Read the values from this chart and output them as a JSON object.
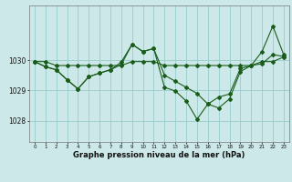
{
  "title": "Graphe pression niveau de la mer (hPa)",
  "background_color": "#cce8e8",
  "grid_color": "#99cccc",
  "line_color": "#1a5c1a",
  "x_labels": [
    "0",
    "1",
    "2",
    "3",
    "4",
    "5",
    "6",
    "7",
    "8",
    "9",
    "10",
    "11",
    "12",
    "13",
    "14",
    "15",
    "16",
    "17",
    "18",
    "19",
    "20",
    "21",
    "22",
    "23"
  ],
  "y_ticks": [
    1028,
    1029,
    1030
  ],
  "ylim": [
    1027.3,
    1031.8
  ],
  "xlim": [
    -0.5,
    23.5
  ],
  "line1": [
    1029.95,
    1029.95,
    1029.82,
    1029.82,
    1029.82,
    1029.82,
    1029.82,
    1029.82,
    1029.82,
    1029.95,
    1029.95,
    1029.95,
    1029.82,
    1029.82,
    1029.82,
    1029.82,
    1029.82,
    1029.82,
    1029.82,
    1029.82,
    1029.82,
    1029.95,
    1029.95,
    1030.1
  ],
  "line2": [
    1029.95,
    1029.78,
    1029.68,
    1029.35,
    1029.05,
    1029.45,
    1029.57,
    1029.68,
    1029.93,
    1030.52,
    1030.28,
    1030.38,
    1029.1,
    1028.98,
    1028.65,
    1028.05,
    1028.55,
    1028.78,
    1028.88,
    1029.72,
    1029.82,
    1030.28,
    1031.12,
    1030.18
  ],
  "line3": [
    1029.95,
    1029.78,
    1029.68,
    1029.35,
    1029.05,
    1029.45,
    1029.57,
    1029.68,
    1029.85,
    1030.52,
    1030.28,
    1030.38,
    1029.5,
    1029.3,
    1029.1,
    1028.9,
    1028.55,
    1028.42,
    1028.72,
    1029.62,
    1029.82,
    1029.88,
    1030.18,
    1030.12
  ]
}
